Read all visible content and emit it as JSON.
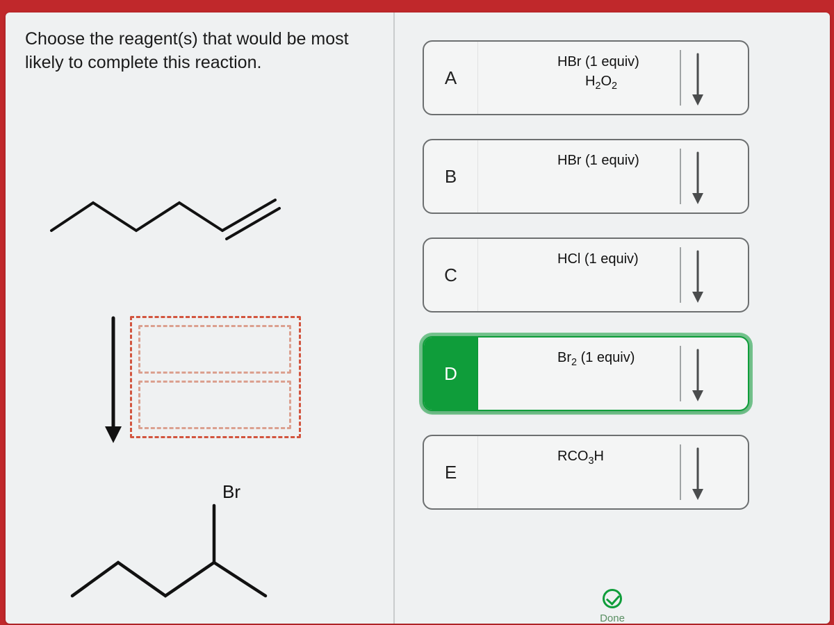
{
  "question_text": "Choose the reagent(s) that would be most likely to complete this reaction.",
  "product_label": "Br",
  "options": [
    {
      "letter": "A",
      "line1": "HBr (1 equiv)",
      "line2_html": "H<sub>2</sub>O<sub>2</sub>",
      "selected": false
    },
    {
      "letter": "B",
      "line1": "HBr (1 equiv)",
      "line2_html": "",
      "selected": false
    },
    {
      "letter": "C",
      "line1": "HCl (1 equiv)",
      "line2_html": "",
      "selected": false
    },
    {
      "letter": "D",
      "line1_html": "Br<sub>2</sub> (1 equiv)",
      "line2_html": "",
      "selected": true
    },
    {
      "letter": "E",
      "line1_html": "RCO<sub>3</sub>H",
      "line2_html": "",
      "selected": false
    }
  ],
  "done_label": "Done",
  "colors": {
    "frame": "#c0282b",
    "panel": "#eff1f2",
    "opt_border": "#6c6f70",
    "sel_green": "#0f9d3a",
    "dash_outer": "#d2553f",
    "dash_inner": "#dba08f"
  }
}
